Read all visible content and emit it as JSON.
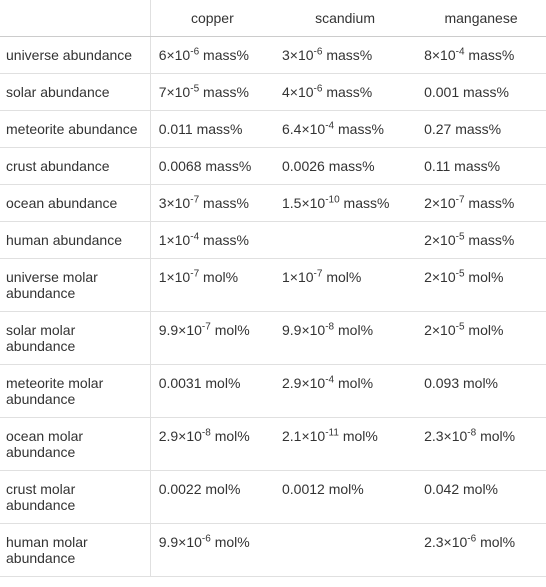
{
  "table": {
    "columns": [
      "",
      "copper",
      "scandium",
      "manganese"
    ],
    "rows": [
      {
        "label": "universe abundance",
        "cells": [
          {
            "base": "6×10",
            "exp": "-6",
            "unit": " mass%"
          },
          {
            "base": "3×10",
            "exp": "-6",
            "unit": " mass%"
          },
          {
            "base": "8×10",
            "exp": "-4",
            "unit": " mass%"
          }
        ]
      },
      {
        "label": "solar abundance",
        "cells": [
          {
            "base": "7×10",
            "exp": "-5",
            "unit": " mass%"
          },
          {
            "base": "4×10",
            "exp": "-6",
            "unit": " mass%"
          },
          {
            "plain": "0.001 mass%"
          }
        ]
      },
      {
        "label": "meteorite abundance",
        "cells": [
          {
            "plain": "0.011 mass%"
          },
          {
            "base": "6.4×10",
            "exp": "-4",
            "unit": " mass%"
          },
          {
            "plain": "0.27 mass%"
          }
        ]
      },
      {
        "label": "crust abundance",
        "cells": [
          {
            "plain": "0.0068 mass%"
          },
          {
            "plain": "0.0026 mass%"
          },
          {
            "plain": "0.11 mass%"
          }
        ]
      },
      {
        "label": "ocean abundance",
        "cells": [
          {
            "base": "3×10",
            "exp": "-7",
            "unit": " mass%"
          },
          {
            "base": "1.5×10",
            "exp": "-10",
            "unit": " mass%"
          },
          {
            "base": "2×10",
            "exp": "-7",
            "unit": " mass%"
          }
        ]
      },
      {
        "label": "human abundance",
        "cells": [
          {
            "base": "1×10",
            "exp": "-4",
            "unit": " mass%"
          },
          {
            "plain": ""
          },
          {
            "base": "2×10",
            "exp": "-5",
            "unit": " mass%"
          }
        ]
      },
      {
        "label": "universe molar abundance",
        "cells": [
          {
            "base": "1×10",
            "exp": "-7",
            "unit": " mol%"
          },
          {
            "base": "1×10",
            "exp": "-7",
            "unit": " mol%"
          },
          {
            "base": "2×10",
            "exp": "-5",
            "unit": " mol%"
          }
        ]
      },
      {
        "label": "solar molar abundance",
        "cells": [
          {
            "base": "9.9×10",
            "exp": "-7",
            "unit": " mol%"
          },
          {
            "base": "9.9×10",
            "exp": "-8",
            "unit": " mol%"
          },
          {
            "base": "2×10",
            "exp": "-5",
            "unit": " mol%"
          }
        ]
      },
      {
        "label": "meteorite molar abundance",
        "cells": [
          {
            "plain": "0.0031 mol%"
          },
          {
            "base": "2.9×10",
            "exp": "-4",
            "unit": " mol%"
          },
          {
            "plain": "0.093 mol%"
          }
        ]
      },
      {
        "label": "ocean molar abundance",
        "cells": [
          {
            "base": "2.9×10",
            "exp": "-8",
            "unit": " mol%"
          },
          {
            "base": "2.1×10",
            "exp": "-11",
            "unit": " mol%"
          },
          {
            "base": "2.3×10",
            "exp": "-8",
            "unit": " mol%"
          }
        ]
      },
      {
        "label": "crust molar abundance",
        "cells": [
          {
            "plain": "0.0022 mol%"
          },
          {
            "plain": "0.0012 mol%"
          },
          {
            "plain": "0.042 mol%"
          }
        ]
      },
      {
        "label": "human molar abundance",
        "cells": [
          {
            "base": "9.9×10",
            "exp": "-6",
            "unit": " mol%"
          },
          {
            "plain": ""
          },
          {
            "base": "2.3×10",
            "exp": "-6",
            "unit": " mol%"
          }
        ]
      }
    ]
  },
  "colors": {
    "border": "#e0e0e0",
    "text": "#333333",
    "background": "#ffffff"
  }
}
